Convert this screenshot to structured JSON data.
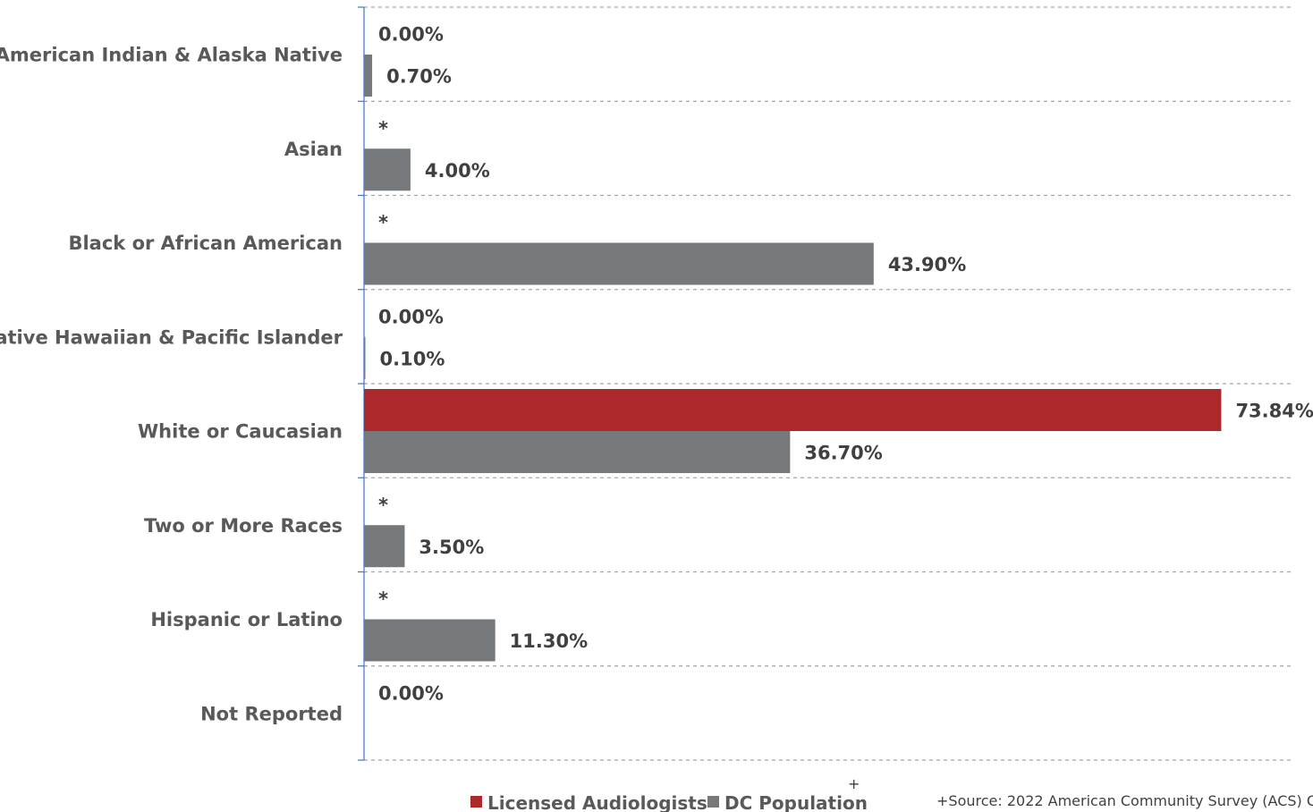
{
  "chart_data": {
    "type": "bar",
    "orientation": "horizontal",
    "categories": [
      "American Indian & Alaska Native",
      "Asian",
      "Black or African American",
      "Native Hawaiian & Pacific Islander",
      "White or Caucasian",
      "Two or More Races",
      "Hispanic or Latino",
      "Not Reported"
    ],
    "series": [
      {
        "name": "Licensed Audiologists",
        "color": "#ac282b",
        "values": [
          0,
          null,
          null,
          0,
          73.84,
          null,
          null,
          0
        ],
        "labels": [
          "0.00%",
          "*",
          "*",
          "0.00%",
          "73.84%",
          "*",
          "*",
          "0.00%"
        ]
      },
      {
        "name": "DC Population",
        "color": "#75797b",
        "values": [
          0.7,
          4.0,
          43.9,
          0.1,
          36.7,
          3.5,
          11.3,
          null
        ],
        "labels": [
          "0.70%",
          "4.00%",
          "43.90%",
          "0.10%",
          "36.70%",
          "3.50%",
          "11.30%",
          ""
        ]
      }
    ],
    "xlim": [
      0,
      80
    ],
    "grid": true,
    "legend": "bottom",
    "legend_suffix": "+",
    "source": "+Source: 2022 American Community Survey (ACS) C"
  }
}
